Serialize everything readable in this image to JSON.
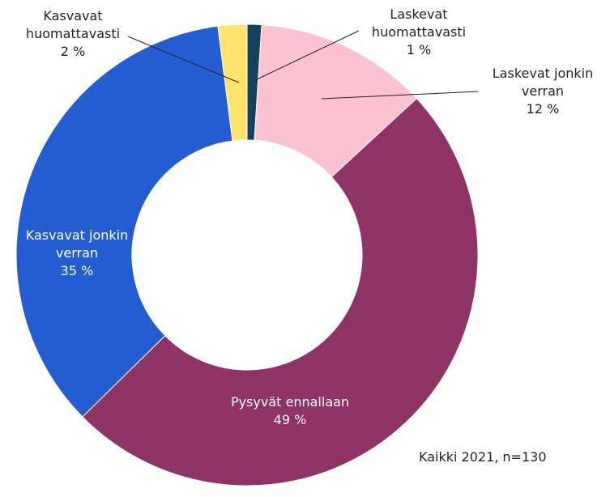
{
  "chart_data": {
    "type": "donut",
    "categories": [
      "Laskevat huomattavasti",
      "Laskevat jonkin verran",
      "Pysyvät ennallaan",
      "Kasvavat jonkin verran",
      "Kasvavat huomattavasti"
    ],
    "values": [
      1,
      12,
      49,
      35,
      2
    ],
    "value_labels": [
      "1 %",
      "12 %",
      "49 %",
      "35 %",
      "2 %"
    ],
    "colors": [
      "#17405f",
      "#fbc3d2",
      "#8f3367",
      "#245cd2",
      "#fde36c"
    ],
    "caption": "Kaikki 2021, n=130"
  }
}
